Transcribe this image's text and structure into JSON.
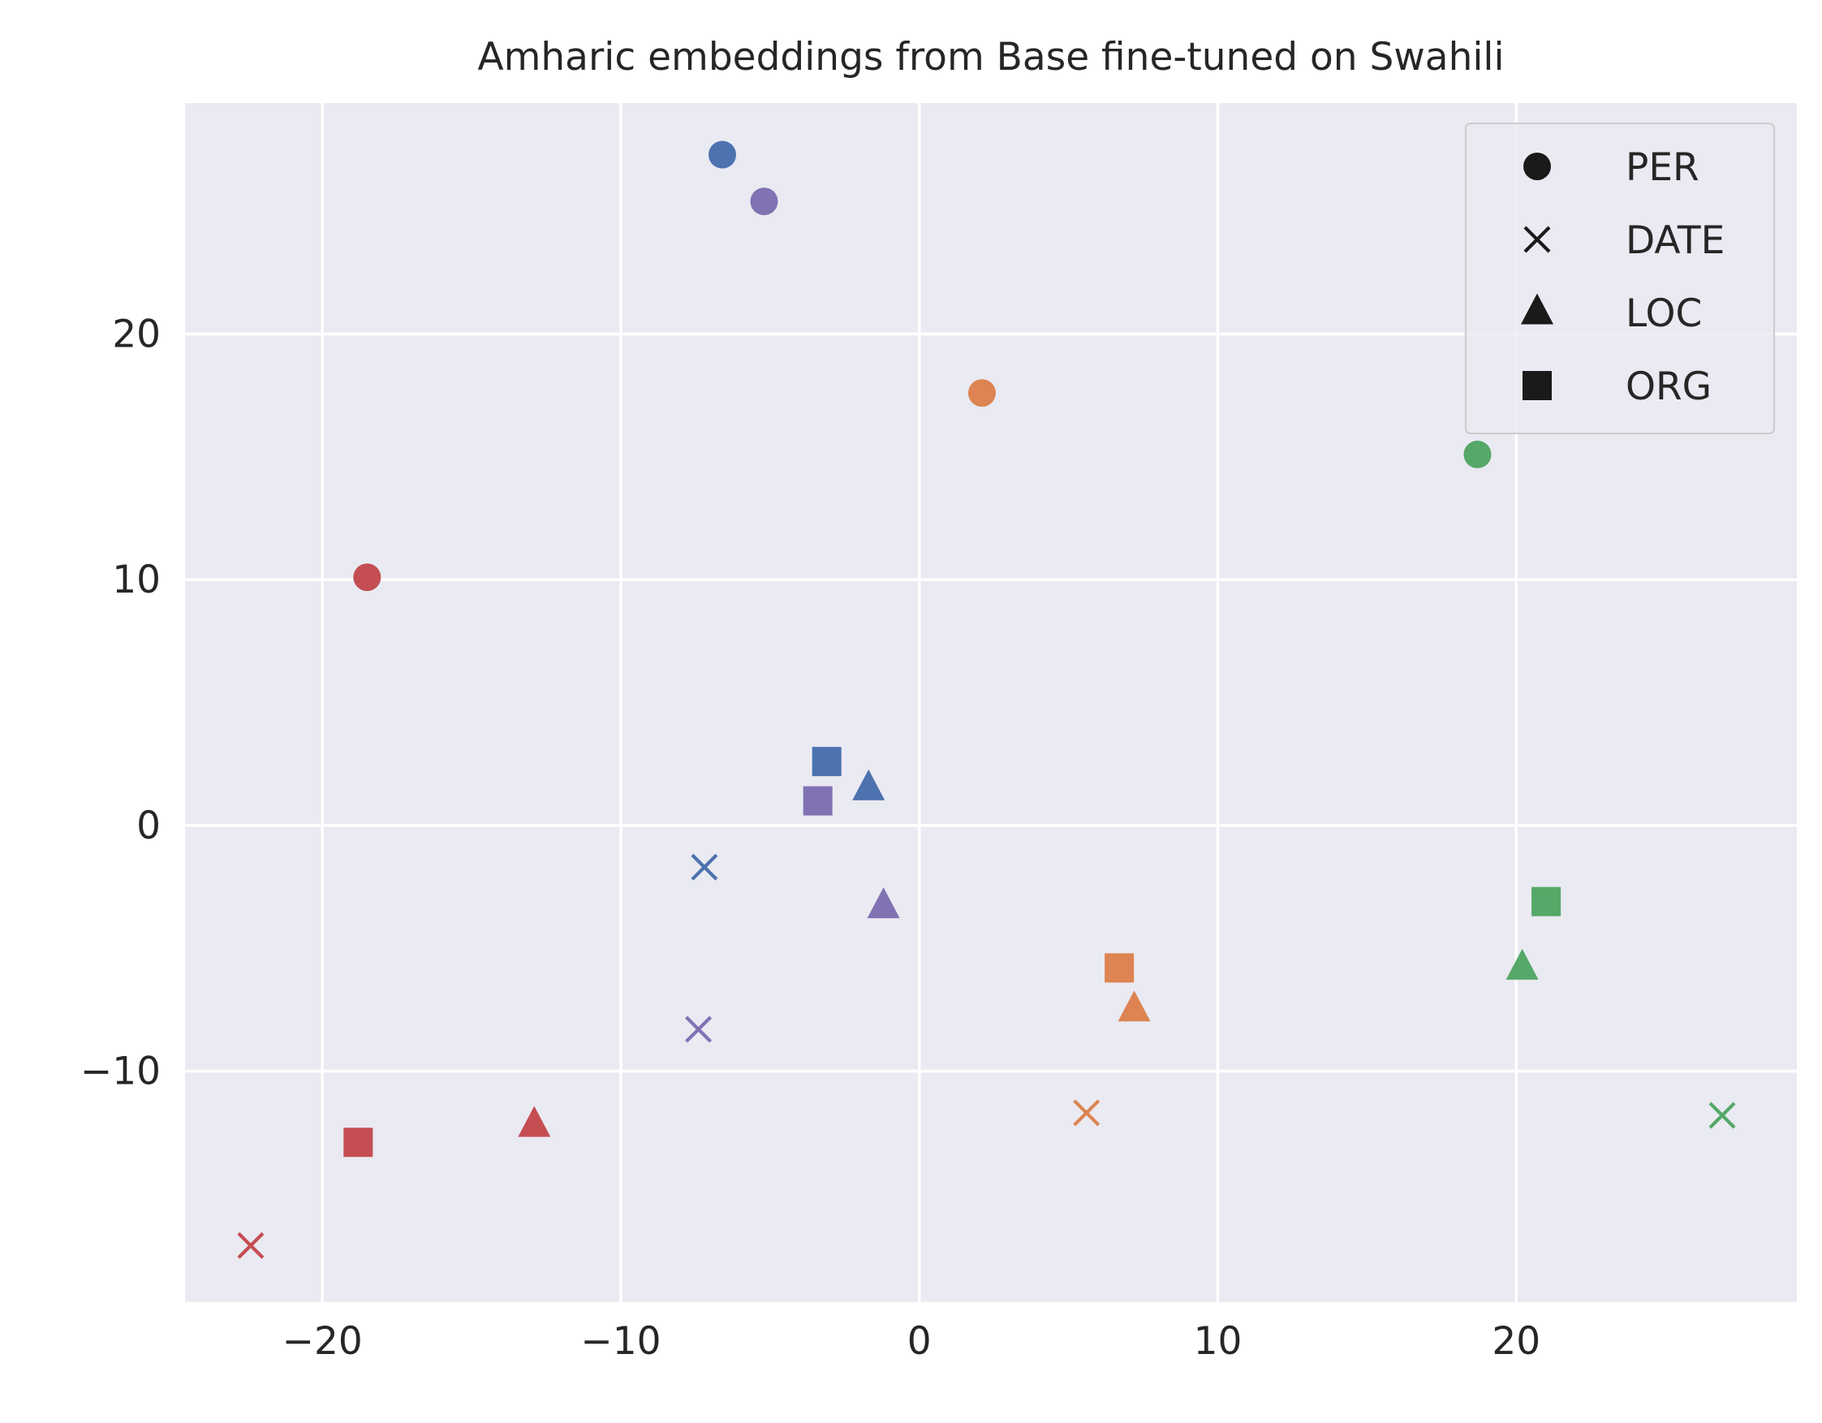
{
  "chart_data": {
    "type": "scatter",
    "title": "Amharic embeddings from Base fine-tuned on Swahili",
    "xlabel": "",
    "ylabel": "",
    "xlim": [
      -24.6,
      29.4
    ],
    "ylim": [
      -19.4,
      29.4
    ],
    "x_ticks": [
      -20,
      -10,
      0,
      10,
      20
    ],
    "y_ticks": [
      -10,
      0,
      10,
      20
    ],
    "x_tick_labels": [
      "−20",
      "−10",
      "0",
      "10",
      "20"
    ],
    "y_tick_labels": [
      "−10",
      "0",
      "10",
      "20"
    ],
    "grid": true,
    "legend_position": "top-right",
    "legend": [
      {
        "label": "PER",
        "marker": "circle"
      },
      {
        "label": "DATE",
        "marker": "x"
      },
      {
        "label": "LOC",
        "marker": "triangle"
      },
      {
        "label": "ORG",
        "marker": "square"
      }
    ],
    "colors": {
      "blue": "#4c72b0",
      "orange": "#dd8452",
      "green": "#55a868",
      "red": "#c44e52",
      "purple": "#8172b3"
    },
    "points": [
      {
        "x": -6.6,
        "y": 27.3,
        "marker": "circle",
        "color": "blue"
      },
      {
        "x": -5.2,
        "y": 25.4,
        "marker": "circle",
        "color": "purple"
      },
      {
        "x": 2.1,
        "y": 17.6,
        "marker": "circle",
        "color": "orange"
      },
      {
        "x": 18.7,
        "y": 15.1,
        "marker": "circle",
        "color": "green"
      },
      {
        "x": -18.5,
        "y": 10.1,
        "marker": "circle",
        "color": "red"
      },
      {
        "x": -3.1,
        "y": 2.6,
        "marker": "square",
        "color": "blue"
      },
      {
        "x": -1.7,
        "y": 1.5,
        "marker": "triangle",
        "color": "blue"
      },
      {
        "x": -3.4,
        "y": 1.0,
        "marker": "square",
        "color": "purple"
      },
      {
        "x": -7.2,
        "y": -1.7,
        "marker": "x",
        "color": "blue"
      },
      {
        "x": -1.2,
        "y": -3.3,
        "marker": "triangle",
        "color": "purple"
      },
      {
        "x": 21.0,
        "y": -3.1,
        "marker": "square",
        "color": "green"
      },
      {
        "x": 20.2,
        "y": -5.8,
        "marker": "triangle",
        "color": "green"
      },
      {
        "x": 6.7,
        "y": -5.8,
        "marker": "square",
        "color": "orange"
      },
      {
        "x": 7.2,
        "y": -7.5,
        "marker": "triangle",
        "color": "orange"
      },
      {
        "x": -7.4,
        "y": -8.3,
        "marker": "x",
        "color": "purple"
      },
      {
        "x": 5.6,
        "y": -11.7,
        "marker": "x",
        "color": "orange"
      },
      {
        "x": 26.9,
        "y": -11.8,
        "marker": "x",
        "color": "green"
      },
      {
        "x": -12.9,
        "y": -12.2,
        "marker": "triangle",
        "color": "red"
      },
      {
        "x": -18.8,
        "y": -12.9,
        "marker": "square",
        "color": "red"
      },
      {
        "x": -22.4,
        "y": -17.1,
        "marker": "x",
        "color": "red"
      }
    ]
  }
}
